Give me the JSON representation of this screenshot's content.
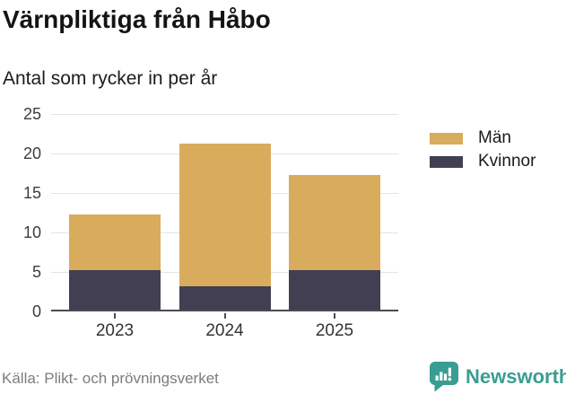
{
  "header": {
    "title": "Värnpliktiga från Håbo",
    "subtitle": "Antal som rycker in per år"
  },
  "chart_data": {
    "type": "bar",
    "stacked": true,
    "title": "Värnpliktiga från Håbo",
    "subtitle": "Antal som rycker in per år",
    "categories": [
      "2023",
      "2024",
      "2025"
    ],
    "series": [
      {
        "name": "Män",
        "color": "#d9ab5d",
        "values": [
          7,
          18,
          12
        ]
      },
      {
        "name": "Kvinnor",
        "color": "#413f51",
        "values": [
          5,
          3,
          5
        ]
      }
    ],
    "stacked_totals": [
      12,
      21,
      17
    ],
    "xlabel": "",
    "ylabel": "",
    "ylim": [
      0,
      25
    ],
    "yticks": [
      0,
      5,
      10,
      15,
      20,
      25
    ],
    "grid": "horizontal",
    "legend_position": "right"
  },
  "footer": {
    "source": "Källa: Plikt- och prövningsverket",
    "brand": "Newsworthy",
    "brand_icon": "newsworthy-speech-bubble-bar-chart-icon"
  },
  "colors": {
    "men": "#d9ab5d",
    "women": "#413f51",
    "brand_teal": "#3a9d92",
    "grid": "#e4e4e4",
    "axis": "#4b4b54",
    "title_text": "#141414",
    "tick_text": "#3d3d3d",
    "muted_text": "#7c7c7c"
  }
}
